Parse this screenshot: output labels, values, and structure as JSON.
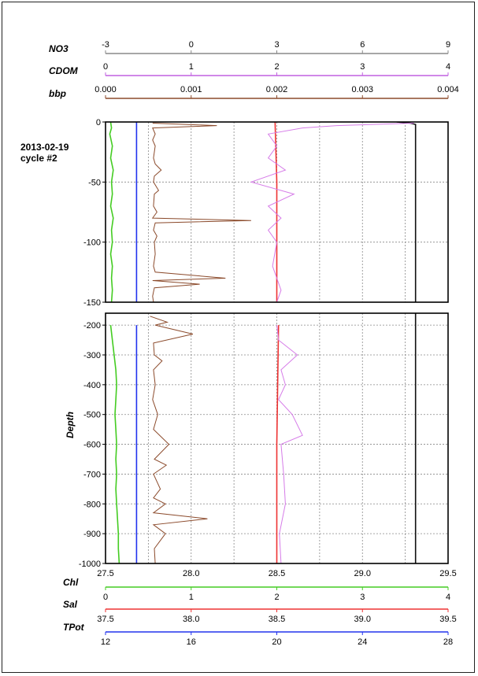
{
  "chart_data": {
    "type": "line",
    "profile_label": [
      "2013-02-19",
      "cycle #2"
    ],
    "ylabel": "Depth",
    "top_axes": [
      {
        "name": "NO3",
        "ticks": [
          "-3",
          "0",
          "3",
          "6",
          "9"
        ],
        "range": [
          -3,
          9
        ],
        "color": "#888888"
      },
      {
        "name": "CDOM",
        "ticks": [
          "0",
          "1",
          "2",
          "3",
          "4"
        ],
        "range": [
          0,
          4
        ],
        "color": "#c060e0"
      },
      {
        "name": "bbp",
        "ticks": [
          "0.000",
          "0.001",
          "0.002",
          "0.003",
          "0.004"
        ],
        "range": [
          0,
          0.004
        ],
        "color": "#8b4a2b"
      }
    ],
    "bottom_axes": [
      {
        "name": "",
        "ticks": [
          "27.5",
          "28.0",
          "28.5",
          "29.0",
          "29.5"
        ],
        "range": [
          27.5,
          29.5
        ],
        "color": "#000000"
      },
      {
        "name": "Chl",
        "ticks": [
          "0",
          "1",
          "2",
          "3",
          "4"
        ],
        "range": [
          0,
          4
        ],
        "color": "#44cc22"
      },
      {
        "name": "Sal",
        "ticks": [
          "37.5",
          "38.0",
          "38.5",
          "39.0",
          "39.5"
        ],
        "range": [
          37.5,
          39.5
        ],
        "color": "#ee3333"
      },
      {
        "name": "TPot",
        "ticks": [
          "12",
          "16",
          "20",
          "24",
          "28"
        ],
        "range": [
          12,
          28
        ],
        "color": "#2233ee"
      }
    ],
    "panels": [
      {
        "ylim": [
          -150,
          0
        ],
        "yticks": [
          "0",
          "-50",
          "-100",
          "-150"
        ],
        "ytick_values": [
          0,
          -50,
          -100,
          -150
        ]
      },
      {
        "ylim": [
          -1000,
          -160
        ],
        "yticks": [
          "-200",
          "-300",
          "-400",
          "-500",
          "-600",
          "-700",
          "-800",
          "-900",
          "-1000"
        ],
        "ytick_values": [
          -200,
          -300,
          -400,
          -500,
          -600,
          -700,
          -800,
          -900,
          -1000
        ]
      }
    ],
    "grid": true,
    "series": [
      {
        "key": "chl",
        "color": "#44cc22",
        "scale_axis": "Chl",
        "points": [
          [
            0.06,
            0
          ],
          [
            0.07,
            -5
          ],
          [
            0.05,
            -10
          ],
          [
            0.08,
            -20
          ],
          [
            0.06,
            -30
          ],
          [
            0.09,
            -40
          ],
          [
            0.07,
            -50
          ],
          [
            0.08,
            -60
          ],
          [
            0.06,
            -70
          ],
          [
            0.09,
            -80
          ],
          [
            0.07,
            -90
          ],
          [
            0.08,
            -100
          ],
          [
            0.06,
            -110
          ],
          [
            0.08,
            -120
          ],
          [
            0.07,
            -130
          ],
          [
            0.08,
            -140
          ],
          [
            0.07,
            -150
          ],
          [
            0.06,
            -200
          ],
          [
            0.08,
            -250
          ],
          [
            0.1,
            -300
          ],
          [
            0.12,
            -350
          ],
          [
            0.13,
            -400
          ],
          [
            0.12,
            -450
          ],
          [
            0.11,
            -500
          ],
          [
            0.12,
            -550
          ],
          [
            0.13,
            -600
          ],
          [
            0.12,
            -650
          ],
          [
            0.13,
            -700
          ],
          [
            0.12,
            -750
          ],
          [
            0.13,
            -800
          ],
          [
            0.14,
            -850
          ],
          [
            0.15,
            -900
          ],
          [
            0.15,
            -950
          ],
          [
            0.16,
            -1000
          ]
        ]
      },
      {
        "key": "tpot",
        "color": "#2233ee",
        "scale_axis": "TPot",
        "points": [
          [
            13.45,
            0
          ],
          [
            13.45,
            -150
          ],
          [
            13.45,
            -200
          ],
          [
            13.45,
            -600
          ],
          [
            13.45,
            -1000
          ]
        ]
      },
      {
        "key": "sal",
        "color": "#ee3333",
        "scale_axis": "Sal",
        "points": [
          [
            38.49,
            0
          ],
          [
            38.5,
            -50
          ],
          [
            38.5,
            -150
          ],
          [
            38.51,
            -200
          ],
          [
            38.5,
            -600
          ],
          [
            38.5,
            -1000
          ]
        ]
      },
      {
        "key": "black",
        "color": "#111111",
        "scale_axis": "",
        "points": [
          [
            29.2,
            0
          ],
          [
            29.28,
            -1
          ],
          [
            29.31,
            -2
          ],
          [
            29.31,
            -150
          ],
          [
            29.31,
            -160
          ],
          [
            29.31,
            -1000
          ]
        ]
      },
      {
        "key": "bbp",
        "color": "#8b4a2b",
        "scale_axis": "bbp",
        "points": [
          [
            0.00055,
            -1
          ],
          [
            0.0013,
            -3
          ],
          [
            0.00055,
            -5
          ],
          [
            0.00058,
            -10
          ],
          [
            0.00055,
            -15
          ],
          [
            0.00058,
            -20
          ],
          [
            0.00056,
            -30
          ],
          [
            0.00058,
            -35
          ],
          [
            0.00065,
            -40
          ],
          [
            0.00057,
            -45
          ],
          [
            0.00056,
            -50
          ],
          [
            0.00062,
            -57
          ],
          [
            0.00057,
            -60
          ],
          [
            0.00056,
            -70
          ],
          [
            0.0006,
            -75
          ],
          [
            0.00055,
            -80
          ],
          [
            0.0017,
            -82
          ],
          [
            0.00058,
            -84
          ],
          [
            0.00056,
            -90
          ],
          [
            0.0006,
            -95
          ],
          [
            0.00057,
            -100
          ],
          [
            0.00058,
            -110
          ],
          [
            0.00056,
            -120
          ],
          [
            0.00058,
            -125
          ],
          [
            0.0014,
            -130
          ],
          [
            0.00055,
            -132
          ],
          [
            0.0011,
            -135
          ],
          [
            0.00057,
            -138
          ],
          [
            0.00055,
            -145
          ],
          [
            0.00056,
            -150
          ],
          [
            0.00052,
            -170
          ],
          [
            0.00072,
            -190
          ],
          [
            0.00058,
            -200
          ],
          [
            0.00102,
            -230
          ],
          [
            0.00056,
            -260
          ],
          [
            0.00057,
            -300
          ],
          [
            0.00066,
            -320
          ],
          [
            0.00056,
            -350
          ],
          [
            0.00058,
            -400
          ],
          [
            0.00055,
            -450
          ],
          [
            0.00061,
            -500
          ],
          [
            0.00056,
            -550
          ],
          [
            0.00074,
            -600
          ],
          [
            0.00057,
            -650
          ],
          [
            0.00071,
            -670
          ],
          [
            0.00056,
            -700
          ],
          [
            0.00064,
            -750
          ],
          [
            0.00056,
            -780
          ],
          [
            0.0007,
            -800
          ],
          [
            0.00056,
            -830
          ],
          [
            0.00119,
            -850
          ],
          [
            0.00056,
            -870
          ],
          [
            0.0007,
            -900
          ],
          [
            0.00057,
            -950
          ],
          [
            0.00058,
            -1000
          ]
        ]
      },
      {
        "key": "cdom",
        "color": "#d67ce8",
        "scale_axis": "CDOM",
        "points": [
          [
            3.6,
            -1
          ],
          [
            2.7,
            -3
          ],
          [
            2.3,
            -5
          ],
          [
            1.9,
            -10
          ],
          [
            2.0,
            -20
          ],
          [
            1.9,
            -30
          ],
          [
            2.1,
            -40
          ],
          [
            1.7,
            -50
          ],
          [
            2.2,
            -60
          ],
          [
            1.9,
            -70
          ],
          [
            2.05,
            -80
          ],
          [
            1.9,
            -90
          ],
          [
            2.0,
            -100
          ],
          [
            1.95,
            -120
          ],
          [
            2.05,
            -140
          ],
          [
            2.0,
            -150
          ],
          [
            2.0,
            -200
          ],
          [
            2.02,
            -250
          ],
          [
            2.24,
            -300
          ],
          [
            2.05,
            -350
          ],
          [
            2.1,
            -400
          ],
          [
            2.02,
            -450
          ],
          [
            2.18,
            -500
          ],
          [
            2.3,
            -570
          ],
          [
            2.05,
            -600
          ],
          [
            2.08,
            -700
          ],
          [
            2.1,
            -800
          ],
          [
            2.03,
            -900
          ],
          [
            2.05,
            -1000
          ]
        ]
      }
    ]
  }
}
